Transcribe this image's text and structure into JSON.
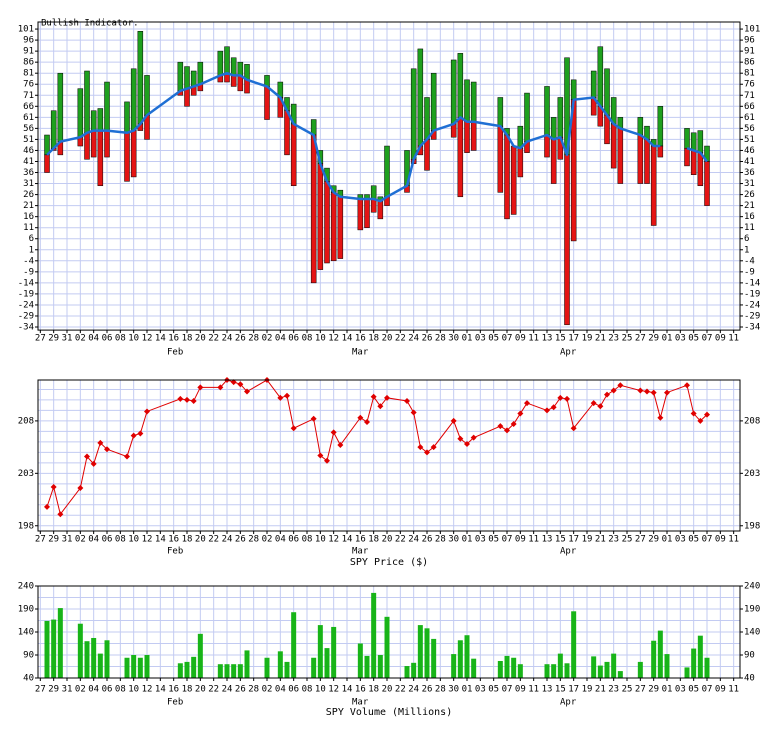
{
  "chart_data": [
    {
      "type": "range-bar",
      "title": "Bullish Indicator.",
      "x": [
        1,
        2,
        3,
        6,
        7,
        8,
        9,
        10,
        13,
        14,
        15,
        16,
        21,
        22,
        23,
        24,
        27,
        28,
        29,
        30,
        31,
        34,
        36,
        37,
        38,
        41,
        42,
        43,
        44,
        45,
        48,
        49,
        50,
        51,
        52,
        55,
        56,
        57,
        58,
        59,
        62,
        63,
        64,
        65,
        69,
        70,
        71,
        72,
        73,
        76,
        77,
        78,
        79,
        80,
        83,
        84,
        85,
        86,
        87,
        90,
        91,
        92,
        93,
        94,
        97,
        98,
        99,
        100
      ],
      "high": [
        53,
        64,
        81,
        74,
        82,
        64,
        65,
        77,
        68,
        83,
        100,
        80,
        86,
        84,
        82,
        86,
        91,
        93,
        88,
        86,
        85,
        80,
        77,
        70,
        67,
        60,
        46,
        38,
        30,
        28,
        26,
        26,
        30,
        25,
        48,
        46,
        83,
        92,
        70,
        81,
        87,
        90,
        78,
        77,
        70,
        56,
        48,
        57,
        72,
        75,
        61,
        70,
        88,
        78,
        82,
        93,
        83,
        70,
        61,
        61,
        57,
        51,
        66,
        null,
        56,
        54,
        55,
        48
      ],
      "line": [
        44,
        47,
        50,
        52,
        54,
        55,
        55,
        55,
        54,
        55,
        58,
        62,
        73,
        74,
        75,
        76,
        80,
        81,
        80,
        80,
        78,
        75,
        70,
        64,
        58,
        53,
        40,
        32,
        27,
        25,
        24,
        24,
        24,
        23,
        25,
        30,
        42,
        48,
        51,
        55,
        58,
        61,
        59,
        59,
        57,
        53,
        48,
        47,
        50,
        53,
        51,
        52,
        44,
        69,
        70,
        66,
        62,
        58,
        56,
        53,
        51,
        48,
        48,
        null,
        47,
        46,
        45,
        41
      ],
      "low": [
        36,
        46,
        44,
        48,
        42,
        43,
        30,
        43,
        32,
        34,
        55,
        51,
        71,
        66,
        71,
        73,
        77,
        77,
        75,
        73,
        72,
        60,
        61,
        44,
        30,
        -14,
        -8,
        -5,
        -4,
        -3,
        10,
        11,
        18,
        15,
        21,
        27,
        40,
        44,
        37,
        51,
        52,
        25,
        45,
        46,
        27,
        15,
        17,
        34,
        45,
        43,
        31,
        42,
        -33,
        5,
        62,
        57,
        49,
        38,
        31,
        31,
        31,
        12,
        43,
        null,
        39,
        35,
        30,
        21
      ],
      "up_color": "#1ea01e",
      "down_color": "#e41414",
      "line_color": "#1f6fd4",
      "xlim": [
        -0.35,
        104.95
      ],
      "xticks": [
        {
          "value": 0,
          "label": "27"
        },
        {
          "value": 2,
          "label": "29"
        },
        {
          "value": 4,
          "label": "31"
        },
        {
          "value": 6,
          "label": "02"
        },
        {
          "value": 8,
          "label": "04"
        },
        {
          "value": 10,
          "label": "06"
        },
        {
          "value": 12,
          "label": "08"
        },
        {
          "value": 14,
          "label": "10"
        },
        {
          "value": 16,
          "label": "12"
        },
        {
          "value": 18,
          "label": "14"
        },
        {
          "value": 20,
          "label": "16"
        },
        {
          "value": 22,
          "label": "18"
        },
        {
          "value": 24,
          "label": "20"
        },
        {
          "value": 26,
          "label": "22"
        },
        {
          "value": 28,
          "label": "24"
        },
        {
          "value": 30,
          "label": "26"
        },
        {
          "value": 32,
          "label": "28"
        },
        {
          "value": 34,
          "label": "02"
        },
        {
          "value": 36,
          "label": "04"
        },
        {
          "value": 38,
          "label": "06"
        },
        {
          "value": 40,
          "label": "08"
        },
        {
          "value": 42,
          "label": "10"
        },
        {
          "value": 44,
          "label": "12"
        },
        {
          "value": 46,
          "label": "14"
        },
        {
          "value": 48,
          "label": "16"
        },
        {
          "value": 50,
          "label": "18"
        },
        {
          "value": 52,
          "label": "20"
        },
        {
          "value": 54,
          "label": "22"
        },
        {
          "value": 56,
          "label": "24"
        },
        {
          "value": 58,
          "label": "26"
        },
        {
          "value": 60,
          "label": "28"
        },
        {
          "value": 62,
          "label": "30"
        },
        {
          "value": 64,
          "label": "01"
        },
        {
          "value": 66,
          "label": "03"
        },
        {
          "value": 68,
          "label": "05"
        },
        {
          "value": 70,
          "label": "07"
        },
        {
          "value": 72,
          "label": "09"
        },
        {
          "value": 74,
          "label": "11"
        },
        {
          "value": 76,
          "label": "13"
        },
        {
          "value": 78,
          "label": "15"
        },
        {
          "value": 80,
          "label": "17"
        },
        {
          "value": 82,
          "label": "19"
        },
        {
          "value": 84,
          "label": "21"
        },
        {
          "value": 86,
          "label": "23"
        },
        {
          "value": 88,
          "label": "25"
        },
        {
          "value": 90,
          "label": "27"
        },
        {
          "value": 92,
          "label": "29"
        },
        {
          "value": 94,
          "label": "01"
        },
        {
          "value": 96,
          "label": "03"
        },
        {
          "value": 98,
          "label": "05"
        },
        {
          "value": 100,
          "label": "07"
        },
        {
          "value": 102,
          "label": "09"
        },
        {
          "value": 104,
          "label": "11"
        }
      ],
      "months": [
        "Feb",
        "Mar",
        "Apr"
      ],
      "ylim": [
        -35.4,
        104.2
      ],
      "yticks": [
        101,
        96,
        91,
        86,
        81,
        76,
        71,
        66,
        61,
        56,
        51,
        46,
        41,
        36,
        31,
        26,
        21,
        16,
        11,
        6,
        1,
        -4,
        -9,
        -14,
        -19,
        -24,
        -29,
        -34
      ],
      "grid": true
    },
    {
      "type": "line",
      "xlabel": "SPY Price ($)",
      "x": [
        1,
        2,
        3,
        6,
        7,
        8,
        9,
        10,
        13,
        14,
        15,
        16,
        21,
        22,
        23,
        24,
        27,
        28,
        29,
        30,
        31,
        34,
        36,
        37,
        38,
        41,
        42,
        43,
        44,
        45,
        48,
        49,
        50,
        51,
        52,
        55,
        56,
        57,
        58,
        59,
        62,
        63,
        64,
        65,
        69,
        70,
        71,
        72,
        73,
        76,
        77,
        78,
        79,
        80,
        83,
        84,
        85,
        86,
        87,
        90,
        91,
        92,
        93,
        94,
        97,
        98,
        99,
        100
      ],
      "values": [
        199.8,
        201.7,
        199.1,
        201.6,
        204.6,
        203.9,
        205.9,
        205.3,
        204.6,
        206.6,
        206.8,
        208.9,
        210.1,
        210.0,
        209.9,
        211.2,
        211.2,
        211.9,
        211.7,
        211.5,
        210.8,
        211.9,
        210.2,
        210.4,
        207.3,
        208.2,
        204.7,
        204.2,
        206.9,
        205.7,
        208.3,
        207.9,
        210.3,
        209.4,
        210.2,
        209.9,
        208.8,
        205.5,
        205.0,
        205.5,
        208.0,
        206.3,
        205.8,
        206.4,
        207.5,
        207.1,
        207.7,
        208.7,
        209.7,
        209.0,
        209.3,
        210.2,
        210.1,
        207.3,
        209.7,
        209.4,
        210.5,
        210.9,
        211.4,
        210.9,
        210.8,
        210.7,
        208.3,
        210.7,
        211.4,
        208.7,
        208.0,
        208.6
      ],
      "color": "#e00000",
      "xlim": [
        -0.35,
        104.95
      ],
      "xticks": [
        {
          "value": 0,
          "label": "27"
        },
        {
          "value": 2,
          "label": "29"
        },
        {
          "value": 4,
          "label": "31"
        },
        {
          "value": 6,
          "label": "02"
        },
        {
          "value": 8,
          "label": "04"
        },
        {
          "value": 10,
          "label": "06"
        },
        {
          "value": 12,
          "label": "08"
        },
        {
          "value": 14,
          "label": "10"
        },
        {
          "value": 16,
          "label": "12"
        },
        {
          "value": 18,
          "label": "14"
        },
        {
          "value": 20,
          "label": "16"
        },
        {
          "value": 22,
          "label": "18"
        },
        {
          "value": 24,
          "label": "20"
        },
        {
          "value": 26,
          "label": "22"
        },
        {
          "value": 28,
          "label": "24"
        },
        {
          "value": 30,
          "label": "26"
        },
        {
          "value": 32,
          "label": "28"
        },
        {
          "value": 34,
          "label": "02"
        },
        {
          "value": 36,
          "label": "04"
        },
        {
          "value": 38,
          "label": "06"
        },
        {
          "value": 40,
          "label": "08"
        },
        {
          "value": 42,
          "label": "10"
        },
        {
          "value": 44,
          "label": "12"
        },
        {
          "value": 46,
          "label": "14"
        },
        {
          "value": 48,
          "label": "16"
        },
        {
          "value": 50,
          "label": "18"
        },
        {
          "value": 52,
          "label": "20"
        },
        {
          "value": 54,
          "label": "22"
        },
        {
          "value": 56,
          "label": "24"
        },
        {
          "value": 58,
          "label": "26"
        },
        {
          "value": 60,
          "label": "28"
        },
        {
          "value": 62,
          "label": "30"
        },
        {
          "value": 64,
          "label": "01"
        },
        {
          "value": 66,
          "label": "03"
        },
        {
          "value": 68,
          "label": "05"
        },
        {
          "value": 70,
          "label": "07"
        },
        {
          "value": 72,
          "label": "09"
        },
        {
          "value": 74,
          "label": "11"
        },
        {
          "value": 76,
          "label": "13"
        },
        {
          "value": 78,
          "label": "15"
        },
        {
          "value": 80,
          "label": "17"
        },
        {
          "value": 82,
          "label": "19"
        },
        {
          "value": 84,
          "label": "21"
        },
        {
          "value": 86,
          "label": "23"
        },
        {
          "value": 88,
          "label": "25"
        },
        {
          "value": 90,
          "label": "27"
        },
        {
          "value": 92,
          "label": "29"
        },
        {
          "value": 94,
          "label": "01"
        },
        {
          "value": 96,
          "label": "03"
        },
        {
          "value": 98,
          "label": "05"
        },
        {
          "value": 100,
          "label": "07"
        },
        {
          "value": 102,
          "label": "09"
        },
        {
          "value": 104,
          "label": "11"
        }
      ],
      "months": [
        "Feb",
        "Mar",
        "Apr"
      ],
      "ylim": [
        197.5,
        211.9
      ],
      "yticks": [
        198,
        203,
        208
      ],
      "grid_values": [
        198,
        199,
        200,
        201,
        202,
        203,
        204,
        205,
        206,
        207,
        208,
        209,
        210,
        211
      ],
      "grid": true
    },
    {
      "type": "bar",
      "xlabel": "SPY Volume (Millions)",
      "x": [
        1,
        2,
        3,
        6,
        7,
        8,
        9,
        10,
        13,
        14,
        15,
        16,
        21,
        22,
        23,
        24,
        27,
        28,
        29,
        30,
        31,
        34,
        36,
        37,
        38,
        41,
        42,
        43,
        44,
        45,
        48,
        49,
        50,
        51,
        52,
        55,
        56,
        57,
        58,
        59,
        62,
        63,
        64,
        65,
        69,
        70,
        71,
        72,
        73,
        76,
        77,
        78,
        79,
        80,
        83,
        84,
        85,
        86,
        87,
        90,
        91,
        92,
        93,
        94,
        97,
        98,
        99,
        100
      ],
      "values": [
        164,
        167,
        192,
        158,
        120,
        127,
        93,
        122,
        84,
        90,
        84,
        90,
        72,
        75,
        86,
        136,
        70,
        70,
        70,
        70,
        100,
        84,
        98,
        75,
        183,
        84,
        155,
        105,
        151,
        null,
        115,
        88,
        225,
        90,
        173,
        66,
        73,
        155,
        148,
        125,
        92,
        122,
        133,
        82,
        77,
        88,
        84,
        70,
        null,
        70,
        70,
        93,
        72,
        185,
        87,
        67,
        75,
        93,
        55,
        75,
        null,
        121,
        143,
        92,
        63,
        104,
        132,
        84
      ],
      "color": "#18b418",
      "xlim": [
        -0.35,
        104.95
      ],
      "xticks": [
        {
          "value": 0,
          "label": "27"
        },
        {
          "value": 2,
          "label": "29"
        },
        {
          "value": 4,
          "label": "31"
        },
        {
          "value": 6,
          "label": "02"
        },
        {
          "value": 8,
          "label": "04"
        },
        {
          "value": 10,
          "label": "06"
        },
        {
          "value": 12,
          "label": "08"
        },
        {
          "value": 14,
          "label": "10"
        },
        {
          "value": 16,
          "label": "12"
        },
        {
          "value": 18,
          "label": "14"
        },
        {
          "value": 20,
          "label": "16"
        },
        {
          "value": 22,
          "label": "18"
        },
        {
          "value": 24,
          "label": "20"
        },
        {
          "value": 26,
          "label": "22"
        },
        {
          "value": 28,
          "label": "24"
        },
        {
          "value": 30,
          "label": "26"
        },
        {
          "value": 32,
          "label": "28"
        },
        {
          "value": 34,
          "label": "02"
        },
        {
          "value": 36,
          "label": "04"
        },
        {
          "value": 38,
          "label": "06"
        },
        {
          "value": 40,
          "label": "08"
        },
        {
          "value": 42,
          "label": "10"
        },
        {
          "value": 44,
          "label": "12"
        },
        {
          "value": 46,
          "label": "14"
        },
        {
          "value": 48,
          "label": "16"
        },
        {
          "value": 50,
          "label": "18"
        },
        {
          "value": 52,
          "label": "20"
        },
        {
          "value": 54,
          "label": "22"
        },
        {
          "value": 56,
          "label": "24"
        },
        {
          "value": 58,
          "label": "26"
        },
        {
          "value": 60,
          "label": "28"
        },
        {
          "value": 62,
          "label": "30"
        },
        {
          "value": 64,
          "label": "01"
        },
        {
          "value": 66,
          "label": "03"
        },
        {
          "value": 68,
          "label": "05"
        },
        {
          "value": 70,
          "label": "07"
        },
        {
          "value": 72,
          "label": "09"
        },
        {
          "value": 74,
          "label": "11"
        },
        {
          "value": 76,
          "label": "13"
        },
        {
          "value": 78,
          "label": "15"
        },
        {
          "value": 80,
          "label": "17"
        },
        {
          "value": 82,
          "label": "19"
        },
        {
          "value": 84,
          "label": "21"
        },
        {
          "value": 86,
          "label": "23"
        },
        {
          "value": 88,
          "label": "25"
        },
        {
          "value": 90,
          "label": "27"
        },
        {
          "value": 92,
          "label": "29"
        },
        {
          "value": 94,
          "label": "01"
        },
        {
          "value": 96,
          "label": "03"
        },
        {
          "value": 98,
          "label": "05"
        },
        {
          "value": 100,
          "label": "07"
        },
        {
          "value": 102,
          "label": "09"
        },
        {
          "value": 104,
          "label": "11"
        }
      ],
      "months": [
        "Feb",
        "Mar",
        "Apr"
      ],
      "ylim": [
        40,
        240
      ],
      "yticks": [
        40,
        90,
        140,
        190,
        240
      ],
      "grid_values": [
        40,
        65,
        90,
        115,
        140,
        165,
        190,
        215,
        240
      ],
      "grid": true
    }
  ]
}
